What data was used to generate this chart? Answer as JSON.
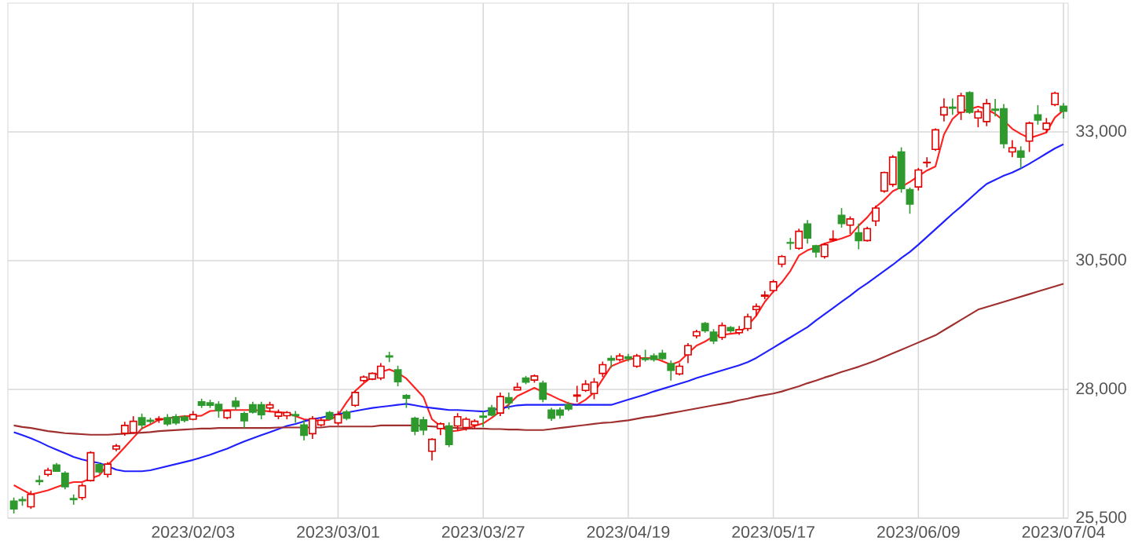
{
  "chart_data": {
    "type": "candlestick",
    "categories": [
      null,
      null,
      null,
      null,
      null,
      null,
      null,
      null,
      null,
      null,
      null,
      null,
      null,
      null,
      null,
      null,
      null,
      null,
      null,
      null,
      null,
      "2023/02/03",
      null,
      null,
      null,
      null,
      null,
      null,
      null,
      null,
      null,
      null,
      null,
      null,
      null,
      null,
      null,
      null,
      "2023/03/01",
      null,
      null,
      null,
      null,
      null,
      null,
      null,
      null,
      null,
      null,
      null,
      null,
      null,
      null,
      null,
      null,
      "2023/03/27",
      null,
      null,
      null,
      null,
      null,
      null,
      null,
      null,
      null,
      null,
      null,
      null,
      null,
      null,
      null,
      null,
      "2023/04/19",
      null,
      null,
      null,
      null,
      null,
      null,
      null,
      null,
      null,
      null,
      null,
      null,
      null,
      null,
      null,
      null,
      "2023/05/17",
      null,
      null,
      null,
      null,
      null,
      null,
      null,
      null,
      null,
      null,
      null,
      null,
      null,
      null,
      null,
      null,
      "2023/06/09",
      null,
      null,
      null,
      null,
      null,
      null,
      null,
      null,
      null,
      null,
      null,
      null,
      null,
      null,
      null,
      null,
      "2023/07/04"
    ],
    "ohlc": [
      [
        25830,
        25900,
        25590,
        25680
      ],
      [
        25860,
        25920,
        25740,
        25840
      ],
      [
        25720,
        26030,
        25680,
        25960
      ],
      [
        26230,
        26330,
        26140,
        26210
      ],
      [
        26350,
        26480,
        26310,
        26430
      ],
      [
        26530,
        26570,
        26400,
        26410
      ],
      [
        26370,
        26410,
        26060,
        26110
      ],
      [
        25880,
        25960,
        25760,
        25860
      ],
      [
        25900,
        26180,
        25850,
        26130
      ],
      [
        26230,
        26800,
        26210,
        26770
      ],
      [
        26540,
        26580,
        26370,
        26400
      ],
      [
        26350,
        26590,
        26290,
        26550
      ],
      [
        26840,
        26940,
        26800,
        26900
      ],
      [
        27150,
        27370,
        27100,
        27300
      ],
      [
        27160,
        27480,
        27140,
        27380
      ],
      [
        27450,
        27530,
        27230,
        27310
      ],
      [
        27400,
        27450,
        27330,
        27380
      ],
      [
        27410,
        27480,
        27350,
        27430
      ],
      [
        27450,
        27520,
        27290,
        27330
      ],
      [
        27470,
        27520,
        27310,
        27350
      ],
      [
        27460,
        27500,
        27360,
        27400
      ],
      [
        27420,
        27580,
        27400,
        27510
      ],
      [
        27760,
        27820,
        27640,
        27690
      ],
      [
        27740,
        27800,
        27640,
        27690
      ],
      [
        27710,
        27770,
        27450,
        27590
      ],
      [
        27450,
        27600,
        27420,
        27580
      ],
      [
        27770,
        27850,
        27600,
        27670
      ],
      [
        27530,
        27570,
        27250,
        27390
      ],
      [
        27700,
        27760,
        27530,
        27560
      ],
      [
        27700,
        27760,
        27420,
        27510
      ],
      [
        27640,
        27760,
        27560,
        27700
      ],
      [
        27480,
        27610,
        27420,
        27550
      ],
      [
        27490,
        27580,
        27420,
        27550
      ],
      [
        27510,
        27580,
        27350,
        27490
      ],
      [
        27310,
        27400,
        27010,
        27110
      ],
      [
        27140,
        27480,
        27040,
        27430
      ],
      [
        27310,
        27450,
        27280,
        27400
      ],
      [
        27550,
        27580,
        27400,
        27430
      ],
      [
        27350,
        27580,
        27300,
        27510
      ],
      [
        27560,
        27600,
        27400,
        27440
      ],
      [
        27690,
        27970,
        27660,
        27940
      ],
      [
        28170,
        28270,
        28140,
        28240
      ],
      [
        28200,
        28330,
        28180,
        28310
      ],
      [
        28220,
        28510,
        28180,
        28450
      ],
      [
        28650,
        28730,
        28530,
        28630
      ],
      [
        28380,
        28460,
        28060,
        28150
      ],
      [
        27880,
        27910,
        27640,
        27830
      ],
      [
        27440,
        27470,
        27110,
        27190
      ],
      [
        27410,
        27470,
        27110,
        27210
      ],
      [
        26800,
        27050,
        26620,
        27030
      ],
      [
        27240,
        27360,
        27110,
        27330
      ],
      [
        27290,
        27360,
        26880,
        26930
      ],
      [
        27290,
        27540,
        27200,
        27470
      ],
      [
        27260,
        27460,
        27200,
        27420
      ],
      [
        27310,
        27420,
        27240,
        27380
      ],
      [
        27480,
        27570,
        27270,
        27460
      ],
      [
        27640,
        27700,
        27480,
        27500
      ],
      [
        27540,
        27940,
        27480,
        27860
      ],
      [
        27840,
        27940,
        27610,
        27740
      ],
      [
        27990,
        28130,
        27990,
        28040
      ],
      [
        28220,
        28260,
        28100,
        28140
      ],
      [
        28180,
        28290,
        28130,
        28260
      ],
      [
        28120,
        28170,
        27750,
        27810
      ],
      [
        27600,
        27640,
        27390,
        27440
      ],
      [
        27600,
        27650,
        27430,
        27500
      ],
      [
        27700,
        27760,
        27580,
        27620
      ],
      [
        27870,
        28070,
        27750,
        27890
      ],
      [
        27980,
        28180,
        27950,
        28100
      ],
      [
        27920,
        28220,
        27810,
        28140
      ],
      [
        28310,
        28540,
        28240,
        28480
      ],
      [
        28600,
        28660,
        28420,
        28570
      ],
      [
        28580,
        28700,
        28540,
        28650
      ],
      [
        28630,
        28690,
        28540,
        28600
      ],
      [
        28450,
        28690,
        28420,
        28650
      ],
      [
        28600,
        28770,
        28540,
        28580
      ],
      [
        28650,
        28700,
        28540,
        28580
      ],
      [
        28700,
        28770,
        28570,
        28600
      ],
      [
        28500,
        28560,
        28170,
        28370
      ],
      [
        28300,
        28510,
        28270,
        28450
      ],
      [
        28670,
        28900,
        28510,
        28850
      ],
      [
        29040,
        29160,
        28990,
        29120
      ],
      [
        29280,
        29310,
        29100,
        29140
      ],
      [
        29110,
        29170,
        28880,
        28940
      ],
      [
        29010,
        29300,
        28960,
        29240
      ],
      [
        29200,
        29230,
        29100,
        29140
      ],
      [
        29100,
        29230,
        29060,
        29160
      ],
      [
        29180,
        29470,
        29130,
        29410
      ],
      [
        29550,
        29670,
        29430,
        29610
      ],
      [
        29810,
        29910,
        29750,
        29830
      ],
      [
        29920,
        30130,
        29880,
        30090
      ],
      [
        30430,
        30610,
        30370,
        30580
      ],
      [
        30850,
        30940,
        30710,
        30840
      ],
      [
        30740,
        31120,
        30710,
        31070
      ],
      [
        31210,
        31290,
        30830,
        30940
      ],
      [
        30790,
        30810,
        30560,
        30670
      ],
      [
        30580,
        30840,
        30540,
        30810
      ],
      [
        30900,
        31090,
        30870,
        30920
      ],
      [
        31380,
        31520,
        31140,
        31220
      ],
      [
        31190,
        31360,
        31020,
        31310
      ],
      [
        31040,
        31220,
        30720,
        30890
      ],
      [
        30890,
        31160,
        30870,
        31120
      ],
      [
        31270,
        31570,
        31170,
        31520
      ],
      [
        31850,
        32230,
        31820,
        32210
      ],
      [
        31980,
        32550,
        31930,
        32510
      ],
      [
        32610,
        32700,
        31820,
        31900
      ],
      [
        31880,
        31920,
        31410,
        31600
      ],
      [
        31930,
        32300,
        31860,
        32260
      ],
      [
        32400,
        32510,
        32310,
        32410
      ],
      [
        32660,
        33070,
        32630,
        33040
      ],
      [
        33330,
        33650,
        33200,
        33480
      ],
      [
        33480,
        33650,
        33330,
        33460
      ],
      [
        33380,
        33760,
        33230,
        33700
      ],
      [
        33760,
        33790,
        33350,
        33380
      ],
      [
        33270,
        33440,
        33090,
        33390
      ],
      [
        33200,
        33640,
        33110,
        33550
      ],
      [
        33440,
        33640,
        33300,
        33420
      ],
      [
        33450,
        33540,
        32680,
        32770
      ],
      [
        32610,
        32840,
        32510,
        32690
      ],
      [
        32630,
        32720,
        32290,
        32510
      ],
      [
        32820,
        33200,
        32610,
        33170
      ],
      [
        33330,
        33520,
        33140,
        33230
      ],
      [
        33050,
        33270,
        32980,
        33170
      ],
      [
        33530,
        33780,
        33500,
        33750
      ],
      [
        33500,
        33560,
        33260,
        33400
      ]
    ],
    "series": [
      {
        "type": "line",
        "color": "#ff2020",
        "values": [
          26140,
          26050,
          25960,
          26000,
          26040,
          26100,
          26160,
          26200,
          26200,
          26270,
          26330,
          26530,
          26700,
          26880,
          27060,
          27240,
          27320,
          27410,
          27440,
          27460,
          27480,
          27480,
          27490,
          27580,
          27590,
          27600,
          27600,
          27600,
          27600,
          27590,
          27570,
          27560,
          27540,
          27480,
          27420,
          27400,
          27390,
          27410,
          27500,
          27750,
          27970,
          28120,
          28250,
          28340,
          28390,
          28320,
          28210,
          28030,
          27850,
          27420,
          27290,
          27180,
          27200,
          27230,
          27290,
          27340,
          27450,
          27570,
          27710,
          27870,
          27950,
          28030,
          27950,
          27880,
          27800,
          27730,
          27700,
          27800,
          27940,
          28200,
          28450,
          28520,
          28580,
          28610,
          28610,
          28610,
          28550,
          28480,
          28540,
          28700,
          28850,
          28930,
          29030,
          29060,
          29080,
          29100,
          29240,
          29430,
          29700,
          29900,
          30080,
          30300,
          30600,
          30700,
          30760,
          30830,
          30880,
          30930,
          30990,
          31180,
          31340,
          31540,
          31680,
          31850,
          31930,
          32030,
          32140,
          32250,
          32330,
          32950,
          33250,
          33400,
          33440,
          33490,
          33440,
          33350,
          33220,
          33060,
          32960,
          32880,
          32930,
          32990,
          33280,
          33420
        ]
      },
      {
        "type": "line",
        "color": "#2020ff",
        "values": [
          27170,
          27110,
          27050,
          26980,
          26900,
          26830,
          26760,
          26690,
          26640,
          26600,
          26570,
          26510,
          26440,
          26410,
          26410,
          26410,
          26430,
          26470,
          26510,
          26550,
          26590,
          26630,
          26680,
          26730,
          26790,
          26850,
          26920,
          26990,
          27050,
          27110,
          27170,
          27230,
          27290,
          27330,
          27380,
          27420,
          27450,
          27490,
          27520,
          27550,
          27580,
          27610,
          27640,
          27660,
          27680,
          27700,
          27720,
          27690,
          27660,
          27640,
          27620,
          27600,
          27600,
          27590,
          27580,
          27570,
          27600,
          27630,
          27660,
          27690,
          27700,
          27700,
          27700,
          27700,
          27700,
          27700,
          27700,
          27700,
          27700,
          27700,
          27700,
          27750,
          27800,
          27850,
          27900,
          27960,
          28010,
          28060,
          28110,
          28160,
          28220,
          28270,
          28320,
          28370,
          28420,
          28470,
          28530,
          28610,
          28710,
          28810,
          28910,
          29010,
          29110,
          29210,
          29340,
          29460,
          29580,
          29700,
          29820,
          29950,
          30060,
          30180,
          30300,
          30420,
          30550,
          30670,
          30810,
          30960,
          31110,
          31260,
          31410,
          31550,
          31700,
          31850,
          31990,
          32070,
          32150,
          32210,
          32290,
          32380,
          32480,
          32580,
          32680,
          32760
        ]
      },
      {
        "type": "line",
        "color": "#a03030",
        "values": [
          27300,
          27270,
          27250,
          27220,
          27190,
          27170,
          27150,
          27140,
          27130,
          27120,
          27120,
          27120,
          27130,
          27140,
          27150,
          27160,
          27170,
          27190,
          27200,
          27210,
          27220,
          27230,
          27240,
          27240,
          27250,
          27250,
          27250,
          27250,
          27250,
          27250,
          27250,
          27260,
          27260,
          27260,
          27260,
          27260,
          27260,
          27280,
          27280,
          27280,
          27280,
          27280,
          27280,
          27300,
          27300,
          27300,
          27300,
          27300,
          27290,
          27280,
          27270,
          27260,
          27250,
          27240,
          27240,
          27240,
          27230,
          27230,
          27220,
          27220,
          27210,
          27210,
          27210,
          27230,
          27250,
          27270,
          27290,
          27310,
          27330,
          27350,
          27360,
          27380,
          27400,
          27430,
          27460,
          27480,
          27510,
          27540,
          27570,
          27600,
          27630,
          27660,
          27690,
          27720,
          27750,
          27790,
          27820,
          27860,
          27890,
          27920,
          27960,
          28010,
          28060,
          28120,
          28170,
          28230,
          28280,
          28340,
          28390,
          28440,
          28500,
          28560,
          28630,
          28700,
          28770,
          28840,
          28910,
          28980,
          29050,
          29150,
          29250,
          29350,
          29450,
          29550,
          29600,
          29650,
          29700,
          29750,
          29800,
          29850,
          29900,
          29950,
          30000,
          30050
        ]
      }
    ],
    "ylim": [
      25500,
      35500
    ],
    "yticks": [
      {
        "value": 25500,
        "label": "25,500"
      },
      {
        "value": 28000,
        "label": "28,000"
      },
      {
        "value": 30500,
        "label": "30,500"
      },
      {
        "value": 33000,
        "label": "33,000"
      }
    ],
    "grid": true
  }
}
